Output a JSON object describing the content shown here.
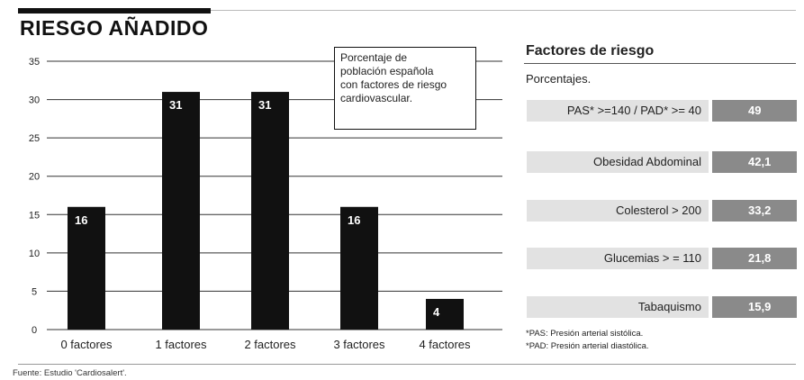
{
  "title": "RIESGO AÑADIDO",
  "legend_box_lines": [
    "Porcentaje de",
    "población española",
    "con factores de riesgo",
    "cardiovascular."
  ],
  "source": "Fuente: Estudio 'Cardiosalert'.",
  "colors": {
    "bar": "#111111",
    "gridline": "#333333",
    "risk_label_bg": "#e2e2e2",
    "risk_value_bg": "#8a8a8a"
  },
  "chart_data": [
    {
      "type": "bar",
      "title": "",
      "xlabel": "",
      "ylabel": "",
      "categories": [
        "0 factores",
        "1 factores",
        "2 factores",
        "3 factores",
        "4 factores"
      ],
      "values": [
        16,
        31,
        31,
        16,
        4
      ],
      "data_labels": [
        "16",
        "31",
        "31",
        "16",
        "4"
      ],
      "ylim": [
        0,
        35
      ],
      "yticks": [
        0,
        5,
        10,
        15,
        20,
        25,
        30,
        35
      ],
      "ytick_labels": [
        "0",
        "5",
        "10",
        "15",
        "20",
        "25",
        "30",
        "35"
      ],
      "grid": true
    },
    {
      "type": "table",
      "title": "Factores de riesgo",
      "subtitle": "Porcentajes.",
      "rows": [
        {
          "label": "PAS* >=140 / PAD* >= 40",
          "value": "49"
        },
        {
          "label": "Obesidad Abdominal",
          "value": "42,1"
        },
        {
          "label": "Colesterol > 200",
          "value": "33,2"
        },
        {
          "label": "Glucemias > = 110",
          "value": "21,8"
        },
        {
          "label": "Tabaquismo",
          "value": "15,9"
        }
      ],
      "footnotes": [
        "*PAS: Presión arterial sistólica.",
        "*PAD: Presión arterial diastólica."
      ]
    }
  ]
}
